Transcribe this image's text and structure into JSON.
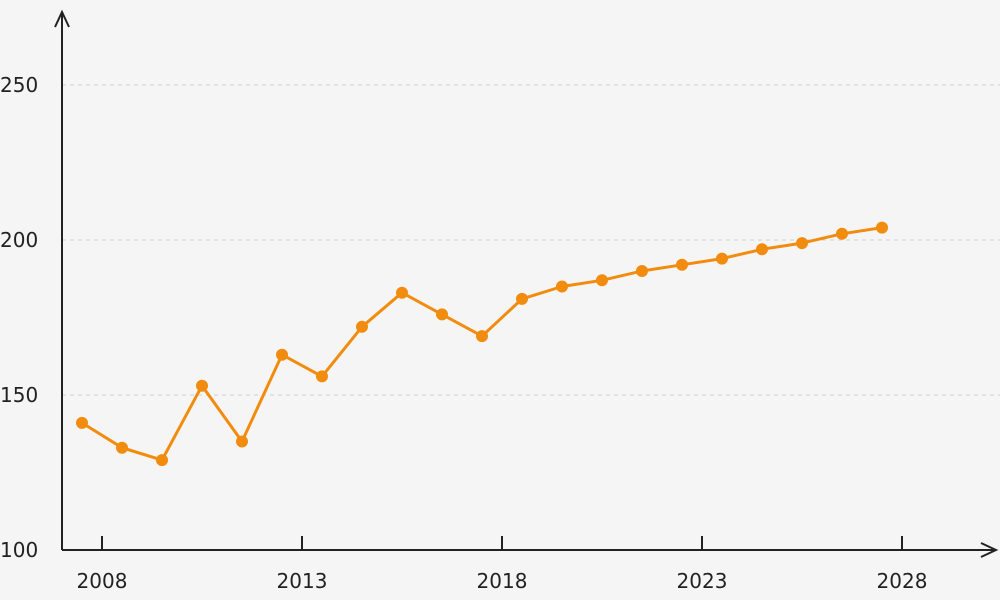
{
  "chart_data": {
    "type": "line",
    "title": "",
    "xlabel": "",
    "ylabel": "",
    "x_ticks": [
      "2008",
      "2013",
      "2018",
      "2023",
      "2028"
    ],
    "y_ticks": [
      "100",
      "150",
      "200",
      "250"
    ],
    "xlim": [
      2007,
      2030
    ],
    "ylim": [
      100,
      260
    ],
    "grid": true,
    "series": [
      {
        "color": "#f28c0f",
        "points": [
          {
            "x": 2007.5,
            "y": 141
          },
          {
            "x": 2008.5,
            "y": 133
          },
          {
            "x": 2009.5,
            "y": 129
          },
          {
            "x": 2010.5,
            "y": 153
          },
          {
            "x": 2011.5,
            "y": 135
          },
          {
            "x": 2012.5,
            "y": 163
          },
          {
            "x": 2013.5,
            "y": 156
          },
          {
            "x": 2014.5,
            "y": 172
          },
          {
            "x": 2015.5,
            "y": 183
          },
          {
            "x": 2016.5,
            "y": 176
          },
          {
            "x": 2017.5,
            "y": 169
          },
          {
            "x": 2018.5,
            "y": 181
          },
          {
            "x": 2019.5,
            "y": 185
          },
          {
            "x": 2020.5,
            "y": 187
          },
          {
            "x": 2021.5,
            "y": 190
          },
          {
            "x": 2022.5,
            "y": 192
          },
          {
            "x": 2023.5,
            "y": 194
          },
          {
            "x": 2024.5,
            "y": 197
          },
          {
            "x": 2025.5,
            "y": 199
          },
          {
            "x": 2026.5,
            "y": 202
          },
          {
            "x": 2027.5,
            "y": 204
          }
        ]
      }
    ]
  }
}
